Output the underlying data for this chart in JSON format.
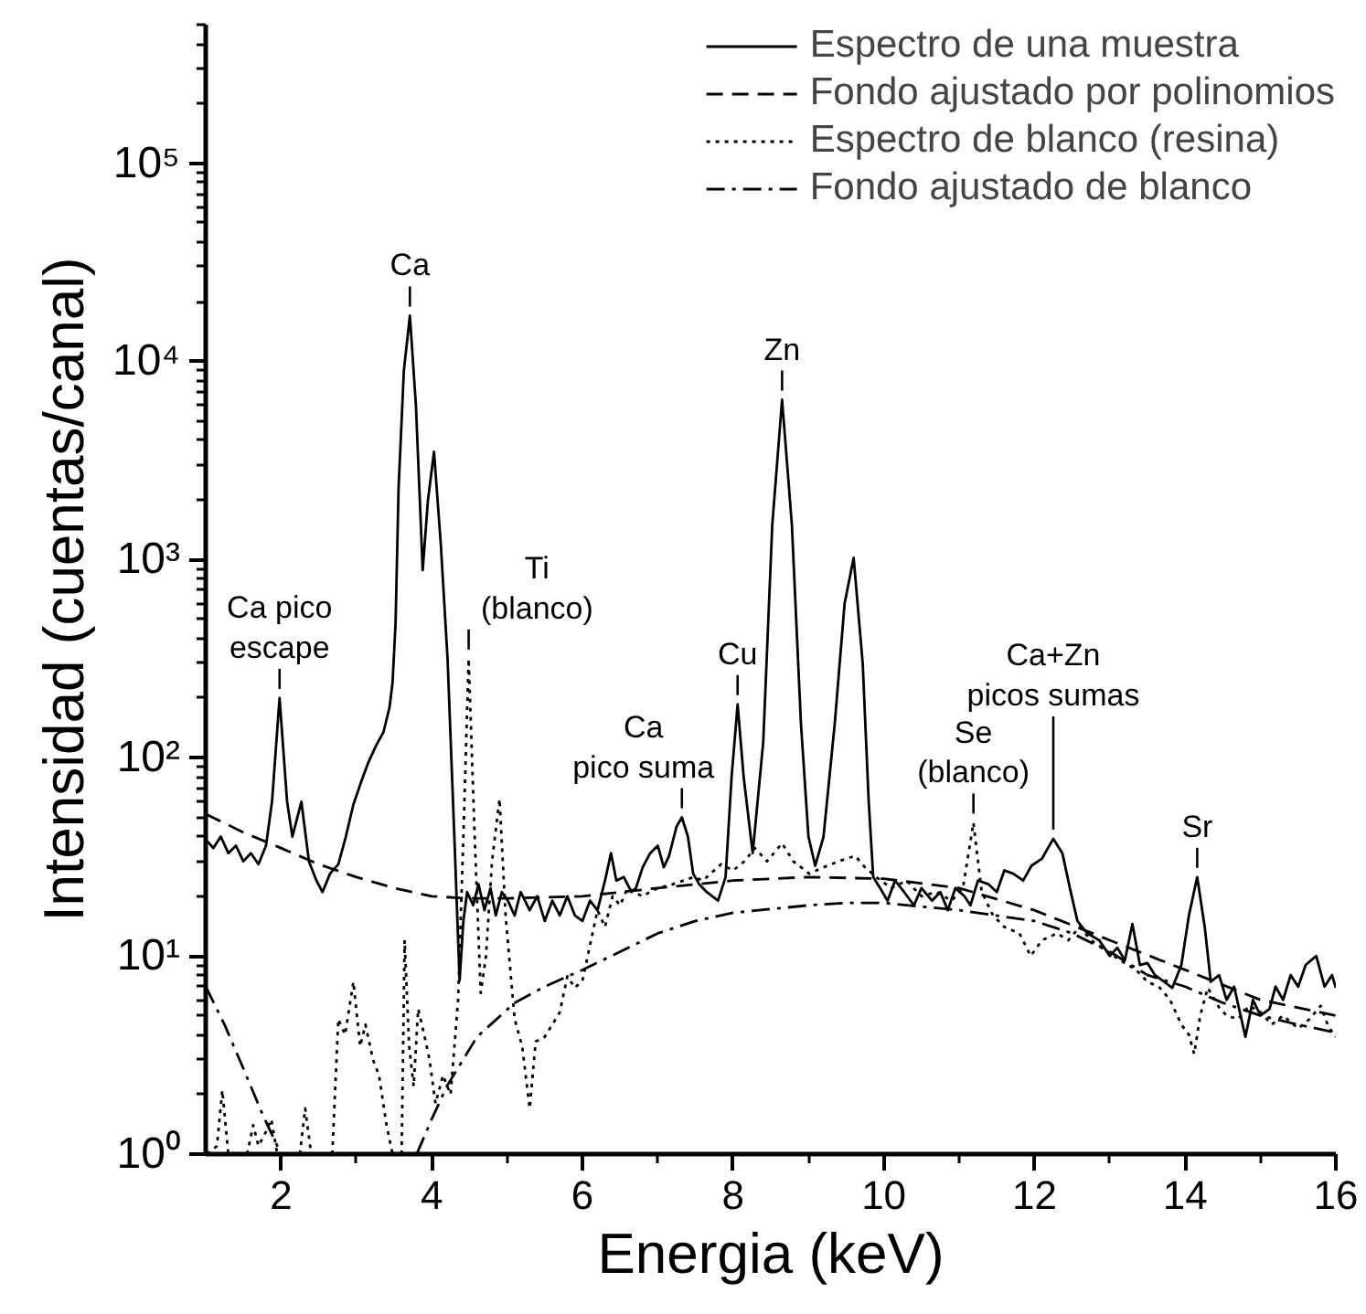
{
  "chart_data": {
    "type": "line",
    "xlabel": "Energia (keV)",
    "ylabel": "Intensidad (cuentas/canal)",
    "log": true,
    "legend": "top right",
    "xlim": [
      1,
      16
    ],
    "ylim": [
      1,
      500000
    ],
    "xticks": [
      2,
      {
        "value": 3,
        "label": null
      },
      4,
      {
        "value": 5,
        "label": null
      },
      6,
      {
        "value": 7,
        "label": null
      },
      8,
      {
        "value": 9,
        "label": null
      },
      10,
      {
        "value": 11,
        "label": null
      },
      12,
      {
        "value": 13,
        "label": null
      },
      14,
      {
        "value": 15,
        "label": null
      },
      16
    ],
    "yticks": [
      {
        "value": 1,
        "label": "10⁰"
      },
      {
        "value": 2,
        "label": null
      },
      {
        "value": 3,
        "label": null
      },
      {
        "value": 4,
        "label": null
      },
      {
        "value": 5,
        "label": null
      },
      {
        "value": 6,
        "label": null
      },
      {
        "value": 7,
        "label": null
      },
      {
        "value": 8,
        "label": null
      },
      {
        "value": 9,
        "label": null
      },
      {
        "value": 10,
        "label": "10¹"
      },
      {
        "value": 20,
        "label": null
      },
      {
        "value": 30,
        "label": null
      },
      {
        "value": 40,
        "label": null
      },
      {
        "value": 50,
        "label": null
      },
      {
        "value": 60,
        "label": null
      },
      {
        "value": 70,
        "label": null
      },
      {
        "value": 80,
        "label": null
      },
      {
        "value": 90,
        "label": null
      },
      {
        "value": 100,
        "label": "10²"
      },
      {
        "value": 200,
        "label": null
      },
      {
        "value": 300,
        "label": null
      },
      {
        "value": 400,
        "label": null
      },
      {
        "value": 500,
        "label": null
      },
      {
        "value": 600,
        "label": null
      },
      {
        "value": 700,
        "label": null
      },
      {
        "value": 800,
        "label": null
      },
      {
        "value": 900,
        "label": null
      },
      {
        "value": 1000,
        "label": "10³"
      },
      {
        "value": 2000,
        "label": null
      },
      {
        "value": 3000,
        "label": null
      },
      {
        "value": 4000,
        "label": null
      },
      {
        "value": 5000,
        "label": null
      },
      {
        "value": 6000,
        "label": null
      },
      {
        "value": 7000,
        "label": null
      },
      {
        "value": 8000,
        "label": null
      },
      {
        "value": 9000,
        "label": null
      },
      {
        "value": 10000,
        "label": "10⁴"
      },
      {
        "value": 20000,
        "label": null
      },
      {
        "value": 30000,
        "label": null
      },
      {
        "value": 40000,
        "label": null
      },
      {
        "value": 50000,
        "label": null
      },
      {
        "value": 60000,
        "label": null
      },
      {
        "value": 70000,
        "label": null
      },
      {
        "value": 80000,
        "label": null
      },
      {
        "value": 90000,
        "label": null
      },
      {
        "value": 100000,
        "label": "10⁵"
      },
      {
        "value": 200000,
        "label": null
      },
      {
        "value": 300000,
        "label": null
      },
      {
        "value": 400000,
        "label": null
      },
      {
        "value": 500000,
        "label": null
      }
    ],
    "series": [
      {
        "name": "Espectro de una muestra",
        "color": "#000000",
        "line_style": "solid",
        "x": [
          1.02,
          1.1,
          1.2,
          1.3,
          1.4,
          1.5,
          1.6,
          1.7,
          1.8,
          1.88,
          1.98,
          2.08,
          2.15,
          2.27,
          2.37,
          2.47,
          2.55,
          2.65,
          2.76,
          2.86,
          2.96,
          3.06,
          3.16,
          3.26,
          3.36,
          3.44,
          3.48,
          3.52,
          3.56,
          3.63,
          3.71,
          3.79,
          3.88,
          3.95,
          4.03,
          4.12,
          4.21,
          4.3,
          4.37,
          4.42,
          4.47,
          4.55,
          4.62,
          4.7,
          4.78,
          4.85,
          4.93,
          5.01,
          5.1,
          5.18,
          5.3,
          5.4,
          5.5,
          5.6,
          5.7,
          5.8,
          5.9,
          6.0,
          6.1,
          6.2,
          6.3,
          6.38,
          6.45,
          6.55,
          6.65,
          6.71,
          6.8,
          6.9,
          7.0,
          7.08,
          7.15,
          7.25,
          7.32,
          7.4,
          7.47,
          7.55,
          7.65,
          7.8,
          7.9,
          7.98,
          8.06,
          8.14,
          8.26,
          8.4,
          8.52,
          8.65,
          8.78,
          8.9,
          9.0,
          9.09,
          9.2,
          9.35,
          9.48,
          9.6,
          9.72,
          9.8,
          9.86,
          9.95,
          10.05,
          10.15,
          10.27,
          10.4,
          10.5,
          10.64,
          10.75,
          10.85,
          10.95,
          11.07,
          11.15,
          11.25,
          11.39,
          11.5,
          11.6,
          11.72,
          11.85,
          11.96,
          12.1,
          12.25,
          12.37,
          12.47,
          12.57,
          12.7,
          12.86,
          13.0,
          13.1,
          13.2,
          13.3,
          13.4,
          13.5,
          13.6,
          13.7,
          13.83,
          13.95,
          14.05,
          14.16,
          14.26,
          14.34,
          14.45,
          14.55,
          14.65,
          14.8,
          14.9,
          15.0,
          15.12,
          15.2,
          15.3,
          15.4,
          15.5,
          15.6,
          15.74,
          15.85,
          15.95,
          16.0
        ],
        "values": [
          38,
          35,
          40,
          33,
          36,
          30,
          33,
          29,
          36,
          60,
          200,
          60,
          40,
          60,
          30,
          24,
          21,
          26,
          29,
          40,
          58,
          75,
          95,
          115,
          135,
          180,
          240,
          480,
          2300,
          9000,
          17000,
          6000,
          885,
          2000,
          3500,
          1200,
          316,
          40,
          7.5,
          15,
          21,
          18,
          23,
          17,
          22,
          16,
          21,
          19,
          16,
          21,
          17,
          20,
          15,
          19,
          16,
          20,
          16,
          15,
          19,
          17,
          24,
          33,
          24,
          25,
          21,
          22,
          28,
          33,
          36,
          28,
          32,
          45,
          50,
          40,
          26,
          23,
          21,
          19,
          25,
          80,
          186,
          80,
          33,
          120,
          1500,
          6400,
          1500,
          150,
          40,
          28.5,
          40,
          150,
          600,
          1020,
          300,
          60,
          25,
          22,
          19,
          24,
          21,
          18,
          22,
          19,
          21,
          17,
          22,
          20,
          18,
          24,
          23,
          21,
          27,
          26,
          24,
          28.5,
          31,
          39,
          33,
          22,
          15,
          13,
          12,
          10,
          11,
          9.5,
          14.5,
          9,
          9.2,
          8,
          7.5,
          6.9,
          9,
          16,
          25,
          14,
          7.4,
          8,
          6,
          7,
          3.9,
          6,
          5,
          5.4,
          7,
          6,
          8,
          7,
          9,
          10,
          7,
          8,
          6.9
        ]
      },
      {
        "name": "Fondo ajustado por polinomios",
        "color": "#000000",
        "line_style": "dashed",
        "x": [
          1,
          1.5,
          2,
          2.5,
          3,
          3.5,
          4,
          4.5,
          5,
          6,
          7,
          8,
          9,
          10,
          11,
          12,
          13,
          14,
          15,
          16
        ],
        "values": [
          52,
          42,
          35,
          29,
          25,
          22,
          20,
          19.5,
          19.5,
          20,
          22,
          24,
          25,
          24.5,
          22,
          17,
          12,
          8.5,
          6,
          5
        ]
      },
      {
        "name": "Espectro de blanco (resina)",
        "color": "#000000",
        "line_style": "dotted",
        "x": [
          1.02,
          1.15,
          1.22,
          1.3,
          1.4,
          1.55,
          1.63,
          1.7,
          1.8,
          1.87,
          1.95,
          2.1,
          2.25,
          2.32,
          2.4,
          2.55,
          2.68,
          2.76,
          2.85,
          2.96,
          3.05,
          3.12,
          3.22,
          3.3,
          3.4,
          3.48,
          3.55,
          3.6,
          3.64,
          3.7,
          3.76,
          3.82,
          3.9,
          3.97,
          4.05,
          4.15,
          4.25,
          4.35,
          4.42,
          4.49,
          4.57,
          4.65,
          4.72,
          4.8,
          4.9,
          4.98,
          5.1,
          5.2,
          5.3,
          5.38,
          5.5,
          5.6,
          5.7,
          5.8,
          5.9,
          6.0,
          6.1,
          6.2,
          6.3,
          6.4,
          6.5,
          6.6,
          6.79,
          7.0,
          7.2,
          7.48,
          7.6,
          7.84,
          8.0,
          8.15,
          8.29,
          8.45,
          8.65,
          8.8,
          9.01,
          9.2,
          9.4,
          9.62,
          9.75,
          9.9,
          10.1,
          10.3,
          10.5,
          10.7,
          10.9,
          11.05,
          11.19,
          11.3,
          11.45,
          11.6,
          11.8,
          11.95,
          12.1,
          12.3,
          12.45,
          12.6,
          12.75,
          12.9,
          13.05,
          13.2,
          13.35,
          13.5,
          13.65,
          13.8,
          13.95,
          14.05,
          14.12,
          14.2,
          14.3,
          14.45,
          14.55,
          14.7,
          14.85,
          15.0,
          15.15,
          15.3,
          15.5,
          15.65,
          15.8,
          15.9,
          16.0
        ],
        "values": [
          1.0,
          1.1,
          2.1,
          1.0,
          null,
          1.0,
          1.4,
          1.1,
          1.3,
          1.5,
          1.0,
          null,
          1.0,
          1.7,
          1.0,
          null,
          1.0,
          4.8,
          4.0,
          7.4,
          3.5,
          4.5,
          3.0,
          2.5,
          1.4,
          1.0,
          null,
          1.0,
          12,
          3.5,
          2.2,
          5.4,
          4.0,
          3.0,
          1.8,
          2.5,
          2.0,
          6.0,
          40,
          316,
          40,
          6.5,
          10,
          30,
          62,
          16,
          4.8,
          3.5,
          1.7,
          3.7,
          3.9,
          4.5,
          5.2,
          7.9,
          6.9,
          7.5,
          11.3,
          17,
          14,
          20,
          18,
          22,
          20,
          22,
          23,
          25,
          24,
          29,
          27,
          30,
          35,
          30,
          37,
          30,
          26,
          28,
          30,
          32,
          28,
          25,
          22,
          24,
          20,
          21,
          19,
          22,
          47,
          21,
          16,
          14,
          13,
          10,
          12,
          13,
          12,
          14,
          12,
          11,
          10,
          9.2,
          8.5,
          7.4,
          7.0,
          6,
          4.5,
          4.0,
          3.2,
          5.0,
          6.9,
          5.5,
          5.0,
          4.8,
          5.6,
          5.2,
          4.5,
          5.0,
          4.3,
          4.8,
          5.6,
          4.4,
          3.9
        ]
      },
      {
        "name": "Fondo ajustado de blanco",
        "color": "#000000",
        "line_style": "dashdot",
        "x": [
          1,
          1.25,
          1.5,
          1.75,
          2,
          2.9,
          3.8,
          4,
          4.2,
          4.6,
          5.1,
          5.5,
          6,
          6.5,
          7,
          7.5,
          8,
          9,
          9.5,
          10,
          11,
          12,
          12.5,
          13,
          13.5,
          14,
          14.5,
          15,
          15.5,
          16
        ],
        "values": [
          7,
          4.5,
          2.7,
          1.6,
          1.0,
          null,
          1.0,
          1.5,
          2.2,
          3.9,
          5.8,
          7.0,
          8.5,
          10.5,
          13,
          15,
          16.5,
          18,
          18.5,
          18.5,
          17,
          15,
          13,
          10.5,
          8,
          7,
          5.8,
          5,
          4.5,
          4.1
        ]
      }
    ],
    "annotations": [
      {
        "text": "Ca pico\nescape",
        "x": 1.98,
        "y": 200
      },
      {
        "text": "Ca",
        "x": 3.71,
        "y": 17000
      },
      {
        "text": "Ti\n(blanco)",
        "x": 4.49,
        "y": 316
      },
      {
        "text": "Ca\npico suma",
        "x": 7.32,
        "y": 50
      },
      {
        "text": "Cu",
        "x": 8.06,
        "y": 186
      },
      {
        "text": "Zn",
        "x": 8.65,
        "y": 6400
      },
      {
        "text": "Se\n(blanco)",
        "x": 11.19,
        "y": 47
      },
      {
        "text": "Ca+Zn\npicos sumas",
        "x": 12.25,
        "y": 39
      },
      {
        "text": "Sr",
        "x": 14.16,
        "y": 25
      }
    ]
  }
}
